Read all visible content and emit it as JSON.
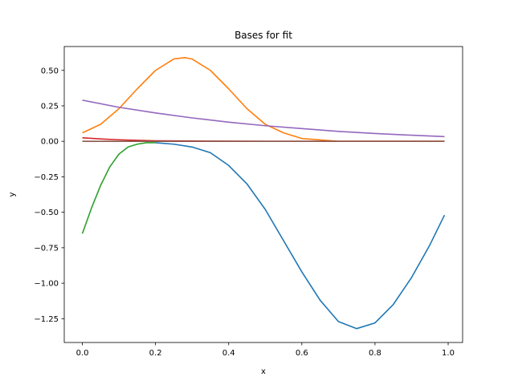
{
  "chart_data": {
    "type": "line",
    "title": "Bases for fit",
    "xlabel": "x",
    "ylabel": "y",
    "xlim": [
      -0.0495,
      1.0395
    ],
    "ylim": [
      -1.4178,
      0.6682
    ],
    "xticks": [
      0.0,
      0.2,
      0.4,
      0.6,
      0.8,
      1.0
    ],
    "xtick_labels": [
      "0.0",
      "0.2",
      "0.4",
      "0.6",
      "0.8",
      "1.0"
    ],
    "yticks": [
      -1.25,
      -1.0,
      -0.75,
      -0.5,
      -0.25,
      0.0,
      0.25,
      0.5
    ],
    "ytick_labels": [
      "−1.25",
      "−1.00",
      "−0.75",
      "−0.50",
      "−0.25",
      "0.00",
      "0.25",
      "0.50"
    ],
    "grid": false,
    "legend": "none",
    "series": [
      {
        "color": "#1f77b4",
        "x": [
          0.2,
          0.25,
          0.3,
          0.35,
          0.4,
          0.45,
          0.5,
          0.55,
          0.6,
          0.65,
          0.7,
          0.75,
          0.8,
          0.85,
          0.9,
          0.95,
          0.99
        ],
        "y": [
          -0.01,
          -0.02,
          -0.04,
          -0.08,
          -0.17,
          -0.3,
          -0.48,
          -0.7,
          -0.92,
          -1.12,
          -1.27,
          -1.32,
          -1.28,
          -1.15,
          -0.96,
          -0.73,
          -0.52
        ]
      },
      {
        "color": "#ff7f0e",
        "x": [
          0.0,
          0.05,
          0.1,
          0.15,
          0.2,
          0.25,
          0.28,
          0.3,
          0.35,
          0.4,
          0.45,
          0.5,
          0.55,
          0.6,
          0.65,
          0.7,
          0.75,
          0.8,
          0.85,
          0.9,
          0.95,
          0.99
        ],
        "y": [
          0.06,
          0.12,
          0.23,
          0.37,
          0.5,
          0.58,
          0.59,
          0.58,
          0.5,
          0.37,
          0.23,
          0.12,
          0.06,
          0.02,
          0.01,
          0.0,
          0.0,
          0.0,
          0.0,
          0.0,
          0.0,
          0.0
        ]
      },
      {
        "color": "#2ca02c",
        "x": [
          0.0,
          0.025,
          0.05,
          0.075,
          0.1,
          0.125,
          0.15,
          0.175,
          0.2
        ],
        "y": [
          -0.65,
          -0.47,
          -0.31,
          -0.18,
          -0.09,
          -0.04,
          -0.02,
          -0.01,
          -0.01
        ]
      },
      {
        "color": "#d62728",
        "x": [
          0.0,
          0.05,
          0.1,
          0.15,
          0.2,
          0.3,
          0.5,
          0.7,
          0.99
        ],
        "y": [
          0.025,
          0.017,
          0.011,
          0.007,
          0.004,
          0.002,
          0.0,
          0.0,
          0.0
        ]
      },
      {
        "color": "#9467bd",
        "x": [
          0.0,
          0.1,
          0.2,
          0.3,
          0.4,
          0.5,
          0.6,
          0.7,
          0.8,
          0.9,
          0.99
        ],
        "y": [
          0.29,
          0.24,
          0.2,
          0.165,
          0.135,
          0.11,
          0.09,
          0.07,
          0.055,
          0.043,
          0.033
        ]
      },
      {
        "color": "#8c564b",
        "x": [
          0.0,
          0.99
        ],
        "y": [
          0.0,
          0.0
        ]
      }
    ]
  }
}
